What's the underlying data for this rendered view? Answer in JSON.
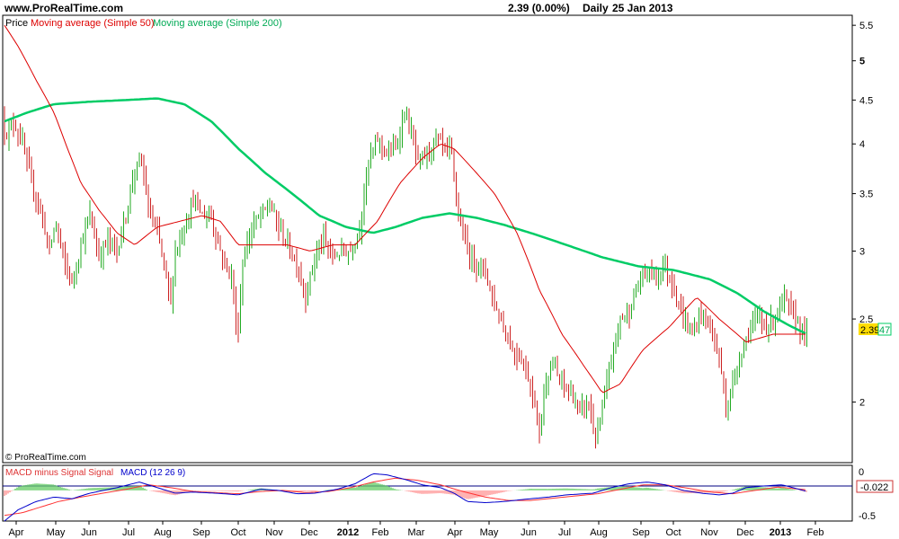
{
  "header": {
    "site": "www.ProRealTime.com",
    "price_info": "2.39 (0.00%)",
    "period": "Daily",
    "date": "25 Jan 2013"
  },
  "copyright": "© ProRealTime.com",
  "colors": {
    "up_bar": "#22aa22",
    "down_bar": "#cc2222",
    "ma50": "#dd0000",
    "ma200": "#00cc66",
    "macd": "#0000cc",
    "signal": "#ff3333",
    "hist_up": "#66cc66",
    "hist_down": "#ff9999",
    "price_badge": "#ffdd00"
  },
  "chart_data": [
    {
      "type": "line",
      "panel": "price",
      "legend": [
        "Price",
        "Moving average (Simple 50)",
        "Moving average (Simple 200)"
      ],
      "x_ticks": [
        "Apr",
        "May",
        "Jun",
        "Jul",
        "Aug",
        "Sep",
        "Oct",
        "Nov",
        "Dec",
        "2012",
        "Feb",
        "Mar",
        "Apr",
        "May",
        "Jun",
        "Jul",
        "Aug",
        "Sep",
        "Oct",
        "Nov",
        "Dec",
        "2013",
        "Feb"
      ],
      "y_ticks": [
        5.5,
        5,
        4.5,
        4,
        3.5,
        3,
        2.5,
        2
      ],
      "y_tick_labels": [
        "5.5",
        "5",
        "4.5",
        "4",
        "3.5",
        "3",
        "2.5",
        "2"
      ],
      "ylim": [
        1.7,
        5.65
      ],
      "y_scale": "log",
      "last_price_label": "2.39",
      "ma200_label": "47",
      "price_anchors": [
        [
          0,
          4.3
        ],
        [
          8,
          4.1
        ],
        [
          15,
          4.25
        ],
        [
          25,
          4.0
        ],
        [
          35,
          3.6
        ],
        [
          45,
          3.35
        ],
        [
          55,
          3.0
        ],
        [
          62,
          3.25
        ],
        [
          70,
          2.95
        ],
        [
          80,
          2.75
        ],
        [
          90,
          3.05
        ],
        [
          100,
          3.3
        ],
        [
          110,
          2.95
        ],
        [
          120,
          3.1
        ],
        [
          130,
          3.0
        ],
        [
          140,
          3.3
        ],
        [
          150,
          3.75
        ],
        [
          158,
          3.8
        ],
        [
          165,
          3.35
        ],
        [
          175,
          3.15
        ],
        [
          185,
          2.8
        ],
        [
          190,
          2.6
        ],
        [
          195,
          3.0
        ],
        [
          205,
          3.2
        ],
        [
          215,
          3.45
        ],
        [
          225,
          3.3
        ],
        [
          235,
          3.3
        ],
        [
          243,
          3.05
        ],
        [
          250,
          2.9
        ],
        [
          258,
          2.8
        ],
        [
          264,
          2.35
        ],
        [
          270,
          2.9
        ],
        [
          280,
          3.2
        ],
        [
          290,
          3.3
        ],
        [
          300,
          3.4
        ],
        [
          310,
          3.2
        ],
        [
          320,
          3.05
        ],
        [
          330,
          2.9
        ],
        [
          340,
          2.65
        ],
        [
          350,
          2.95
        ],
        [
          360,
          3.1
        ],
        [
          370,
          2.95
        ],
        [
          380,
          3.0
        ],
        [
          390,
          3.0
        ],
        [
          400,
          3.2
        ],
        [
          410,
          3.8
        ],
        [
          420,
          4.05
        ],
        [
          430,
          3.9
        ],
        [
          440,
          3.95
        ],
        [
          450,
          4.35
        ],
        [
          458,
          4.1
        ],
        [
          465,
          3.8
        ],
        [
          475,
          3.9
        ],
        [
          485,
          4.05
        ],
        [
          495,
          3.95
        ],
        [
          502,
          3.9
        ],
        [
          510,
          3.3
        ],
        [
          520,
          3.0
        ],
        [
          530,
          2.9
        ],
        [
          540,
          2.85
        ],
        [
          550,
          2.6
        ],
        [
          560,
          2.45
        ],
        [
          570,
          2.3
        ],
        [
          580,
          2.25
        ],
        [
          590,
          2.1
        ],
        [
          600,
          1.85
        ],
        [
          608,
          2.15
        ],
        [
          615,
          2.2
        ],
        [
          625,
          2.1
        ],
        [
          635,
          2.05
        ],
        [
          645,
          1.95
        ],
        [
          655,
          2.0
        ],
        [
          662,
          1.8
        ],
        [
          670,
          1.95
        ],
        [
          680,
          2.25
        ],
        [
          690,
          2.5
        ],
        [
          700,
          2.55
        ],
        [
          710,
          2.75
        ],
        [
          720,
          2.85
        ],
        [
          730,
          2.8
        ],
        [
          738,
          2.9
        ],
        [
          748,
          2.75
        ],
        [
          760,
          2.5
        ],
        [
          770,
          2.4
        ],
        [
          780,
          2.55
        ],
        [
          790,
          2.45
        ],
        [
          800,
          2.25
        ],
        [
          808,
          1.95
        ],
        [
          815,
          2.1
        ],
        [
          825,
          2.3
        ],
        [
          835,
          2.45
        ],
        [
          845,
          2.5
        ],
        [
          855,
          2.45
        ],
        [
          865,
          2.55
        ],
        [
          872,
          2.65
        ],
        [
          880,
          2.55
        ],
        [
          890,
          2.45
        ],
        [
          898,
          2.39
        ]
      ],
      "ma50_anchors": [
        [
          5,
          5.5
        ],
        [
          20,
          5.2
        ],
        [
          40,
          4.75
        ],
        [
          60,
          4.35
        ],
        [
          75,
          3.95
        ],
        [
          90,
          3.6
        ],
        [
          110,
          3.35
        ],
        [
          130,
          3.15
        ],
        [
          150,
          3.05
        ],
        [
          175,
          3.2
        ],
        [
          200,
          3.25
        ],
        [
          225,
          3.3
        ],
        [
          245,
          3.25
        ],
        [
          265,
          3.05
        ],
        [
          290,
          3.05
        ],
        [
          320,
          3.05
        ],
        [
          345,
          3.0
        ],
        [
          370,
          3.05
        ],
        [
          395,
          3.05
        ],
        [
          420,
          3.25
        ],
        [
          445,
          3.6
        ],
        [
          470,
          3.85
        ],
        [
          490,
          4.0
        ],
        [
          505,
          3.95
        ],
        [
          525,
          3.75
        ],
        [
          550,
          3.5
        ],
        [
          575,
          3.15
        ],
        [
          600,
          2.7
        ],
        [
          625,
          2.4
        ],
        [
          650,
          2.2
        ],
        [
          670,
          2.05
        ],
        [
          690,
          2.1
        ],
        [
          715,
          2.3
        ],
        [
          745,
          2.45
        ],
        [
          775,
          2.65
        ],
        [
          800,
          2.5
        ],
        [
          830,
          2.35
        ],
        [
          860,
          2.4
        ],
        [
          898,
          2.4
        ]
      ],
      "ma200_anchors": [
        [
          5,
          4.25
        ],
        [
          30,
          4.35
        ],
        [
          60,
          4.45
        ],
        [
          100,
          4.48
        ],
        [
          140,
          4.5
        ],
        [
          175,
          4.52
        ],
        [
          205,
          4.45
        ],
        [
          235,
          4.25
        ],
        [
          265,
          3.95
        ],
        [
          295,
          3.7
        ],
        [
          325,
          3.5
        ],
        [
          355,
          3.3
        ],
        [
          385,
          3.2
        ],
        [
          415,
          3.15
        ],
        [
          440,
          3.2
        ],
        [
          470,
          3.28
        ],
        [
          500,
          3.32
        ],
        [
          530,
          3.28
        ],
        [
          560,
          3.22
        ],
        [
          590,
          3.15
        ],
        [
          630,
          3.05
        ],
        [
          670,
          2.95
        ],
        [
          710,
          2.88
        ],
        [
          750,
          2.85
        ],
        [
          790,
          2.78
        ],
        [
          820,
          2.68
        ],
        [
          850,
          2.55
        ],
        [
          880,
          2.45
        ],
        [
          898,
          2.4
        ]
      ]
    },
    {
      "type": "line",
      "panel": "macd",
      "legend": [
        "MACD minus Signal Signal",
        "MACD (12 26 9)"
      ],
      "y_tick_labels": [
        "0",
        "-0.5"
      ],
      "ylim": [
        -0.55,
        0.45
      ],
      "last_value_label": "-0.022",
      "macd_anchors": [
        [
          5,
          -0.55
        ],
        [
          20,
          -0.35
        ],
        [
          40,
          -0.2
        ],
        [
          60,
          -0.12
        ],
        [
          80,
          -0.15
        ],
        [
          100,
          -0.05
        ],
        [
          130,
          0.05
        ],
        [
          155,
          0.15
        ],
        [
          175,
          0.05
        ],
        [
          195,
          -0.05
        ],
        [
          215,
          -0.03
        ],
        [
          240,
          -0.05
        ],
        [
          265,
          -0.08
        ],
        [
          290,
          0.02
        ],
        [
          310,
          0.0
        ],
        [
          330,
          -0.06
        ],
        [
          350,
          -0.05
        ],
        [
          375,
          0.02
        ],
        [
          395,
          0.12
        ],
        [
          415,
          0.3
        ],
        [
          430,
          0.28
        ],
        [
          450,
          0.2
        ],
        [
          470,
          0.1
        ],
        [
          490,
          0.05
        ],
        [
          505,
          -0.05
        ],
        [
          520,
          -0.2
        ],
        [
          540,
          -0.22
        ],
        [
          560,
          -0.2
        ],
        [
          590,
          -0.15
        ],
        [
          610,
          -0.12
        ],
        [
          630,
          -0.08
        ],
        [
          660,
          -0.05
        ],
        [
          680,
          0.05
        ],
        [
          700,
          0.12
        ],
        [
          720,
          0.15
        ],
        [
          740,
          0.1
        ],
        [
          760,
          0.0
        ],
        [
          780,
          -0.05
        ],
        [
          800,
          -0.08
        ],
        [
          815,
          -0.05
        ],
        [
          830,
          0.05
        ],
        [
          850,
          0.08
        ],
        [
          870,
          0.1
        ],
        [
          898,
          -0.02
        ]
      ],
      "signal_anchors": [
        [
          5,
          -0.45
        ],
        [
          25,
          -0.4
        ],
        [
          45,
          -0.3
        ],
        [
          65,
          -0.2
        ],
        [
          90,
          -0.12
        ],
        [
          115,
          -0.05
        ],
        [
          140,
          0.02
        ],
        [
          165,
          0.1
        ],
        [
          190,
          0.05
        ],
        [
          215,
          -0.02
        ],
        [
          240,
          -0.04
        ],
        [
          265,
          -0.06
        ],
        [
          290,
          -0.02
        ],
        [
          315,
          0.0
        ],
        [
          340,
          -0.04
        ],
        [
          365,
          -0.02
        ],
        [
          390,
          0.05
        ],
        [
          415,
          0.15
        ],
        [
          440,
          0.22
        ],
        [
          465,
          0.18
        ],
        [
          490,
          0.1
        ],
        [
          515,
          -0.02
        ],
        [
          540,
          -0.12
        ],
        [
          565,
          -0.18
        ],
        [
          590,
          -0.18
        ],
        [
          615,
          -0.14
        ],
        [
          640,
          -0.1
        ],
        [
          665,
          -0.06
        ],
        [
          690,
          0.02
        ],
        [
          715,
          0.1
        ],
        [
          740,
          0.1
        ],
        [
          765,
          0.04
        ],
        [
          790,
          -0.03
        ],
        [
          815,
          -0.06
        ],
        [
          840,
          0.0
        ],
        [
          865,
          0.06
        ],
        [
          898,
          0.01
        ]
      ]
    }
  ]
}
